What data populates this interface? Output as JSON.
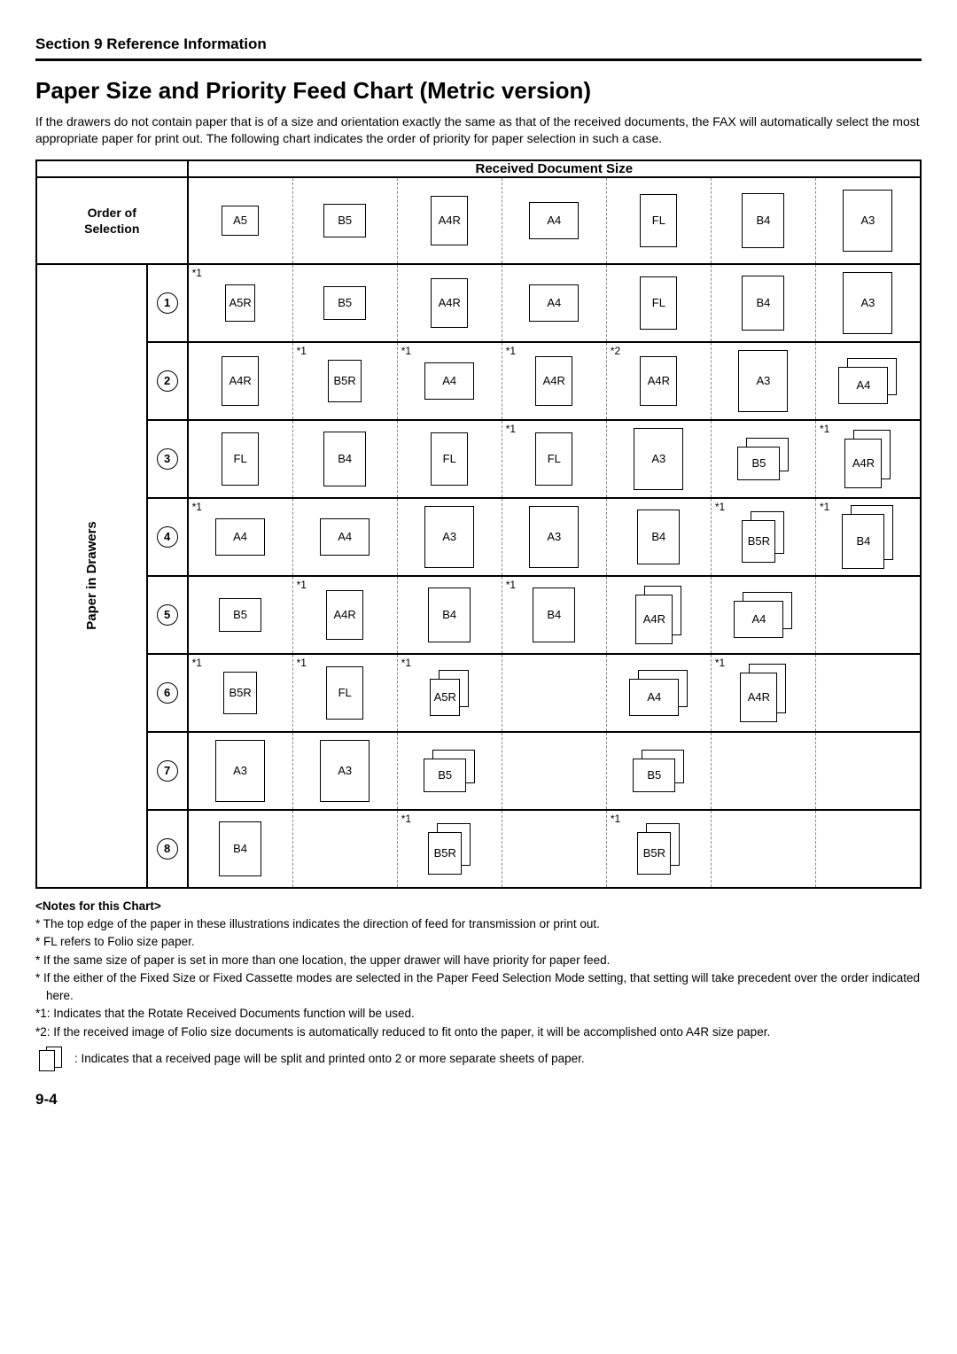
{
  "section_header": "Section 9  Reference Information",
  "title": "Paper Size and Priority Feed Chart (Metric version)",
  "intro": "If the drawers do not contain paper that is of a size and orientation exactly the same as that of the received documents, the FAX will automatically select the most appropriate paper for print out. The following chart indicates the order of priority for paper selection in such a case.",
  "hdr_doc": "Received Document Size",
  "hdr_order_1": "Order of",
  "hdr_order_2": "Selection",
  "vlabel": "Paper in Drawers",
  "header_sizes": [
    "A5",
    "B5",
    "A4R",
    "A4",
    "FL",
    "B4",
    "A3"
  ],
  "rows": [
    {
      "num": "1",
      "cells": [
        {
          "size": "A5R",
          "note": "*1"
        },
        {
          "size": "B5"
        },
        {
          "size": "A4R"
        },
        {
          "size": "A4"
        },
        {
          "size": "FL"
        },
        {
          "size": "B4"
        },
        {
          "size": "A3"
        }
      ]
    },
    {
      "num": "2",
      "cells": [
        {
          "size": "A4R"
        },
        {
          "size": "B5R",
          "note": "*1"
        },
        {
          "size": "A4",
          "note": "*1"
        },
        {
          "size": "A4R",
          "note": "*1"
        },
        {
          "size": "A4R",
          "note": "*2"
        },
        {
          "size": "A3"
        },
        {
          "size": "A4",
          "split": true
        }
      ]
    },
    {
      "num": "3",
      "cells": [
        {
          "size": "FL"
        },
        {
          "size": "B4"
        },
        {
          "size": "FL"
        },
        {
          "size": "FL",
          "note": "*1"
        },
        {
          "size": "A3"
        },
        {
          "size": "B5",
          "split": true
        },
        {
          "size": "A4R",
          "note": "*1",
          "split": true
        }
      ]
    },
    {
      "num": "4",
      "cells": [
        {
          "size": "A4",
          "note": "*1"
        },
        {
          "size": "A4"
        },
        {
          "size": "A3"
        },
        {
          "size": "A3"
        },
        {
          "size": "B4"
        },
        {
          "size": "B5R",
          "note": "*1",
          "split": true
        },
        {
          "size": "B4",
          "note": "*1",
          "split": true
        }
      ]
    },
    {
      "num": "5",
      "cells": [
        {
          "size": "B5"
        },
        {
          "size": "A4R",
          "note": "*1"
        },
        {
          "size": "B4"
        },
        {
          "size": "B4",
          "note": "*1"
        },
        {
          "size": "A4R",
          "split": true
        },
        {
          "size": "A4",
          "split": true
        },
        {
          "empty": true
        }
      ]
    },
    {
      "num": "6",
      "cells": [
        {
          "size": "B5R",
          "note": "*1"
        },
        {
          "size": "FL",
          "note": "*1"
        },
        {
          "size": "A5R",
          "note": "*1",
          "split": true
        },
        {
          "empty": true
        },
        {
          "size": "A4",
          "split": true
        },
        {
          "size": "A4R",
          "note": "*1",
          "split": true
        },
        {
          "empty": true
        }
      ]
    },
    {
      "num": "7",
      "cells": [
        {
          "size": "A3"
        },
        {
          "size": "A3"
        },
        {
          "size": "B5",
          "split": true
        },
        {
          "empty": true
        },
        {
          "size": "B5",
          "split": true
        },
        {
          "empty": true
        },
        {
          "empty": true
        }
      ]
    },
    {
      "num": "8",
      "cells": [
        {
          "size": "B4"
        },
        {
          "empty": true
        },
        {
          "size": "B5R",
          "note": "*1",
          "split": true
        },
        {
          "empty": true
        },
        {
          "size": "B5R",
          "note": "*1",
          "split": true
        },
        {
          "empty": true
        },
        {
          "empty": true
        }
      ]
    }
  ],
  "notes_title": "<Notes for this Chart>",
  "note_a": "* The top edge of the paper in these illustrations indicates the direction of feed for transmission or print out.",
  "note_b": "* FL refers to Folio size paper.",
  "note_c": "* If the same size of paper is set in more than one location, the upper drawer will have priority for paper feed.",
  "note_d": "* If the either of the Fixed Size or Fixed Cassette modes are selected in the Paper Feed Selection Mode setting, that setting will take precedent over the order indicated here.",
  "note_e": "*1: Indicates that the Rotate Received Documents function will be used.",
  "note_f": "*2: If the received image of Folio size documents is automatically reduced to fit onto the paper, it will be accomplished onto A4R size paper.",
  "note_g": ": Indicates that a received page will be split and printed onto 2 or more separate sheets of paper.",
  "page_num": "9-4"
}
